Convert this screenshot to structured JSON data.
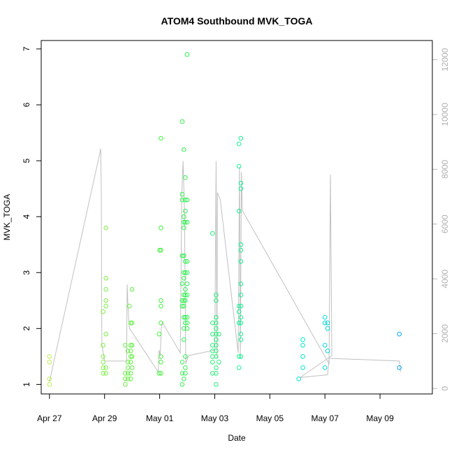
{
  "chart_data": {
    "type": "scatter",
    "title": "ATOM4 Southbound MVK_TOGA",
    "xlabel": "Date",
    "ylabel": "MVK_TOGA",
    "xlim": [
      -0.3,
      13.9
    ],
    "ylim": [
      0.83,
      7.15
    ],
    "xticks": [
      {
        "label": "Apr 27",
        "value": 0
      },
      {
        "label": "Apr 29",
        "value": 2
      },
      {
        "label": "May 01",
        "value": 4
      },
      {
        "label": "May 03",
        "value": 6
      },
      {
        "label": "May 05",
        "value": 8
      },
      {
        "label": "May 07",
        "value": 10
      },
      {
        "label": "May 09",
        "value": 12
      }
    ],
    "yticks": [
      1,
      2,
      3,
      4,
      5,
      6,
      7
    ],
    "y2lim": [
      -200,
      12700
    ],
    "y2ticks": [
      0,
      2000,
      4000,
      6000,
      8000,
      10000,
      12000
    ],
    "x_units_note": "days after Apr 27",
    "colors": {
      "right_axis": "#b8b8b8",
      "line": "#c0c0c0",
      "point_scale": [
        "#b9f04a",
        "#3af03a",
        "#00f0c8",
        "#00a8ff"
      ]
    },
    "series": [
      {
        "kind": "points",
        "points": [
          [
            0.0,
            1.5
          ],
          [
            0.0,
            1.4
          ],
          [
            0.0,
            1.1
          ],
          [
            0.0,
            1.0
          ],
          [
            1.95,
            1.7
          ],
          [
            1.95,
            1.5
          ],
          [
            1.95,
            1.4
          ],
          [
            1.95,
            1.3
          ],
          [
            1.95,
            1.2
          ],
          [
            1.95,
            2.3
          ],
          [
            2.05,
            3.8
          ],
          [
            2.05,
            2.9
          ],
          [
            2.05,
            2.7
          ],
          [
            2.05,
            2.5
          ],
          [
            2.05,
            2.4
          ],
          [
            2.05,
            1.9
          ],
          [
            2.05,
            1.3
          ],
          [
            2.05,
            1.2
          ],
          [
            2.75,
            1.7
          ],
          [
            2.75,
            1.2
          ],
          [
            2.75,
            1.1
          ],
          [
            2.75,
            1.0
          ],
          [
            2.85,
            1.6
          ],
          [
            2.85,
            1.4
          ],
          [
            2.85,
            1.3
          ],
          [
            2.85,
            1.2
          ],
          [
            2.85,
            1.1
          ],
          [
            2.9,
            2.4
          ],
          [
            2.95,
            2.1
          ],
          [
            2.95,
            1.7
          ],
          [
            2.95,
            1.6
          ],
          [
            2.95,
            1.5
          ],
          [
            2.95,
            1.4
          ],
          [
            2.95,
            1.2
          ],
          [
            2.95,
            1.1
          ],
          [
            3.0,
            2.7
          ],
          [
            3.0,
            2.1
          ],
          [
            3.0,
            1.7
          ],
          [
            3.0,
            1.5
          ],
          [
            3.0,
            1.3
          ],
          [
            3.98,
            1.9
          ],
          [
            3.98,
            1.2
          ],
          [
            4.05,
            5.4
          ],
          [
            4.05,
            3.8
          ],
          [
            4.05,
            3.4
          ],
          [
            4.05,
            2.5
          ],
          [
            4.05,
            2.4
          ],
          [
            4.05,
            2.1
          ],
          [
            4.05,
            1.5
          ],
          [
            4.05,
            1.4
          ],
          [
            4.05,
            1.2
          ],
          [
            4.0,
            3.4
          ],
          [
            4.82,
            5.7
          ],
          [
            4.82,
            4.4
          ],
          [
            4.82,
            4.3
          ],
          [
            4.82,
            3.3
          ],
          [
            4.82,
            2.8
          ],
          [
            4.82,
            2.5
          ],
          [
            4.82,
            2.4
          ],
          [
            4.82,
            1.4
          ],
          [
            4.82,
            1.2
          ],
          [
            4.82,
            1.0
          ],
          [
            4.88,
            5.2
          ],
          [
            4.88,
            4.0
          ],
          [
            4.88,
            3.9
          ],
          [
            4.88,
            3.8
          ],
          [
            4.88,
            3.3
          ],
          [
            4.88,
            3.0
          ],
          [
            4.88,
            2.9
          ],
          [
            4.88,
            2.6
          ],
          [
            4.88,
            2.5
          ],
          [
            4.88,
            2.4
          ],
          [
            4.88,
            2.2
          ],
          [
            4.88,
            2.0
          ],
          [
            4.88,
            1.8
          ],
          [
            4.88,
            1.1
          ],
          [
            4.93,
            4.7
          ],
          [
            4.93,
            4.3
          ],
          [
            4.93,
            4.1
          ],
          [
            4.93,
            3.9
          ],
          [
            4.93,
            3.2
          ],
          [
            4.93,
            3.0
          ],
          [
            4.93,
            2.7
          ],
          [
            4.93,
            2.6
          ],
          [
            4.93,
            2.5
          ],
          [
            4.93,
            2.2
          ],
          [
            4.93,
            2.1
          ],
          [
            4.93,
            1.5
          ],
          [
            4.93,
            1.3
          ],
          [
            4.93,
            1.2
          ],
          [
            5.0,
            6.9
          ],
          [
            5.0,
            4.3
          ],
          [
            5.0,
            3.9
          ],
          [
            5.0,
            3.2
          ],
          [
            5.0,
            3.0
          ],
          [
            5.0,
            2.8
          ],
          [
            5.0,
            2.6
          ],
          [
            5.0,
            2.2
          ],
          [
            5.0,
            2.1
          ],
          [
            5.0,
            2.0
          ],
          [
            5.92,
            3.7
          ],
          [
            5.92,
            2.1
          ],
          [
            5.92,
            1.9
          ],
          [
            5.92,
            1.7
          ],
          [
            5.92,
            1.6
          ],
          [
            5.92,
            1.5
          ],
          [
            5.92,
            1.4
          ],
          [
            5.92,
            1.2
          ],
          [
            6.05,
            2.6
          ],
          [
            6.05,
            2.5
          ],
          [
            6.05,
            2.2
          ],
          [
            6.05,
            2.1
          ],
          [
            6.05,
            2.0
          ],
          [
            6.05,
            1.9
          ],
          [
            6.05,
            1.8
          ],
          [
            6.05,
            1.7
          ],
          [
            6.05,
            1.6
          ],
          [
            6.05,
            1.5
          ],
          [
            6.05,
            1.3
          ],
          [
            6.05,
            1.2
          ],
          [
            6.05,
            1.0
          ],
          [
            6.15,
            1.9
          ],
          [
            6.15,
            1.4
          ],
          [
            6.88,
            5.3
          ],
          [
            6.88,
            4.9
          ],
          [
            6.88,
            4.1
          ],
          [
            6.88,
            2.4
          ],
          [
            6.88,
            2.3
          ],
          [
            6.88,
            2.1
          ],
          [
            6.88,
            1.5
          ],
          [
            6.88,
            1.3
          ],
          [
            6.95,
            5.4
          ],
          [
            6.95,
            4.6
          ],
          [
            6.95,
            4.5
          ],
          [
            6.95,
            3.5
          ],
          [
            6.95,
            3.4
          ],
          [
            6.95,
            3.2
          ],
          [
            6.95,
            2.8
          ],
          [
            6.95,
            2.6
          ],
          [
            6.95,
            2.4
          ],
          [
            6.95,
            2.2
          ],
          [
            6.95,
            2.1
          ],
          [
            6.95,
            1.9
          ],
          [
            6.95,
            1.8
          ],
          [
            6.95,
            1.5
          ],
          [
            9.05,
            1.1
          ],
          [
            9.2,
            1.8
          ],
          [
            9.2,
            1.7
          ],
          [
            9.2,
            1.5
          ],
          [
            9.2,
            1.3
          ],
          [
            10.0,
            2.2
          ],
          [
            10.0,
            2.1
          ],
          [
            10.0,
            1.7
          ],
          [
            10.0,
            1.3
          ],
          [
            10.1,
            2.1
          ],
          [
            10.1,
            2.0
          ],
          [
            10.1,
            1.6
          ],
          [
            12.7,
            1.9
          ],
          [
            12.7,
            1.3
          ]
        ]
      }
    ],
    "secondary_line": [
      [
        0.0,
        250
      ],
      [
        1.82,
        8550
      ],
      [
        1.86,
        8750
      ],
      [
        1.88,
        7300
      ],
      [
        1.9,
        1600
      ],
      [
        2.0,
        1000
      ],
      [
        2.8,
        1000
      ],
      [
        2.82,
        3800
      ],
      [
        2.85,
        3000
      ],
      [
        2.9,
        2200
      ],
      [
        3.95,
        600
      ],
      [
        3.98,
        1400
      ],
      [
        4.02,
        1200
      ],
      [
        4.06,
        2200
      ],
      [
        4.1,
        2400
      ],
      [
        4.75,
        1300
      ],
      [
        4.8,
        7000
      ],
      [
        4.85,
        8300
      ],
      [
        4.9,
        6500
      ],
      [
        4.95,
        900
      ],
      [
        5.05,
        1200
      ],
      [
        6.0,
        1400
      ],
      [
        6.05,
        8300
      ],
      [
        6.08,
        1100
      ],
      [
        6.1,
        7150
      ],
      [
        6.2,
        6900
      ],
      [
        6.85,
        1300
      ],
      [
        6.9,
        8100
      ],
      [
        6.93,
        1100
      ],
      [
        6.97,
        7900
      ],
      [
        7.0,
        6500
      ],
      [
        10.15,
        900
      ],
      [
        10.2,
        7800
      ],
      [
        10.25,
        1200
      ],
      [
        9.1,
        400
      ],
      [
        10.1,
        500
      ],
      [
        10.15,
        1100
      ],
      [
        12.7,
        1000
      ],
      [
        12.75,
        600
      ]
    ]
  }
}
